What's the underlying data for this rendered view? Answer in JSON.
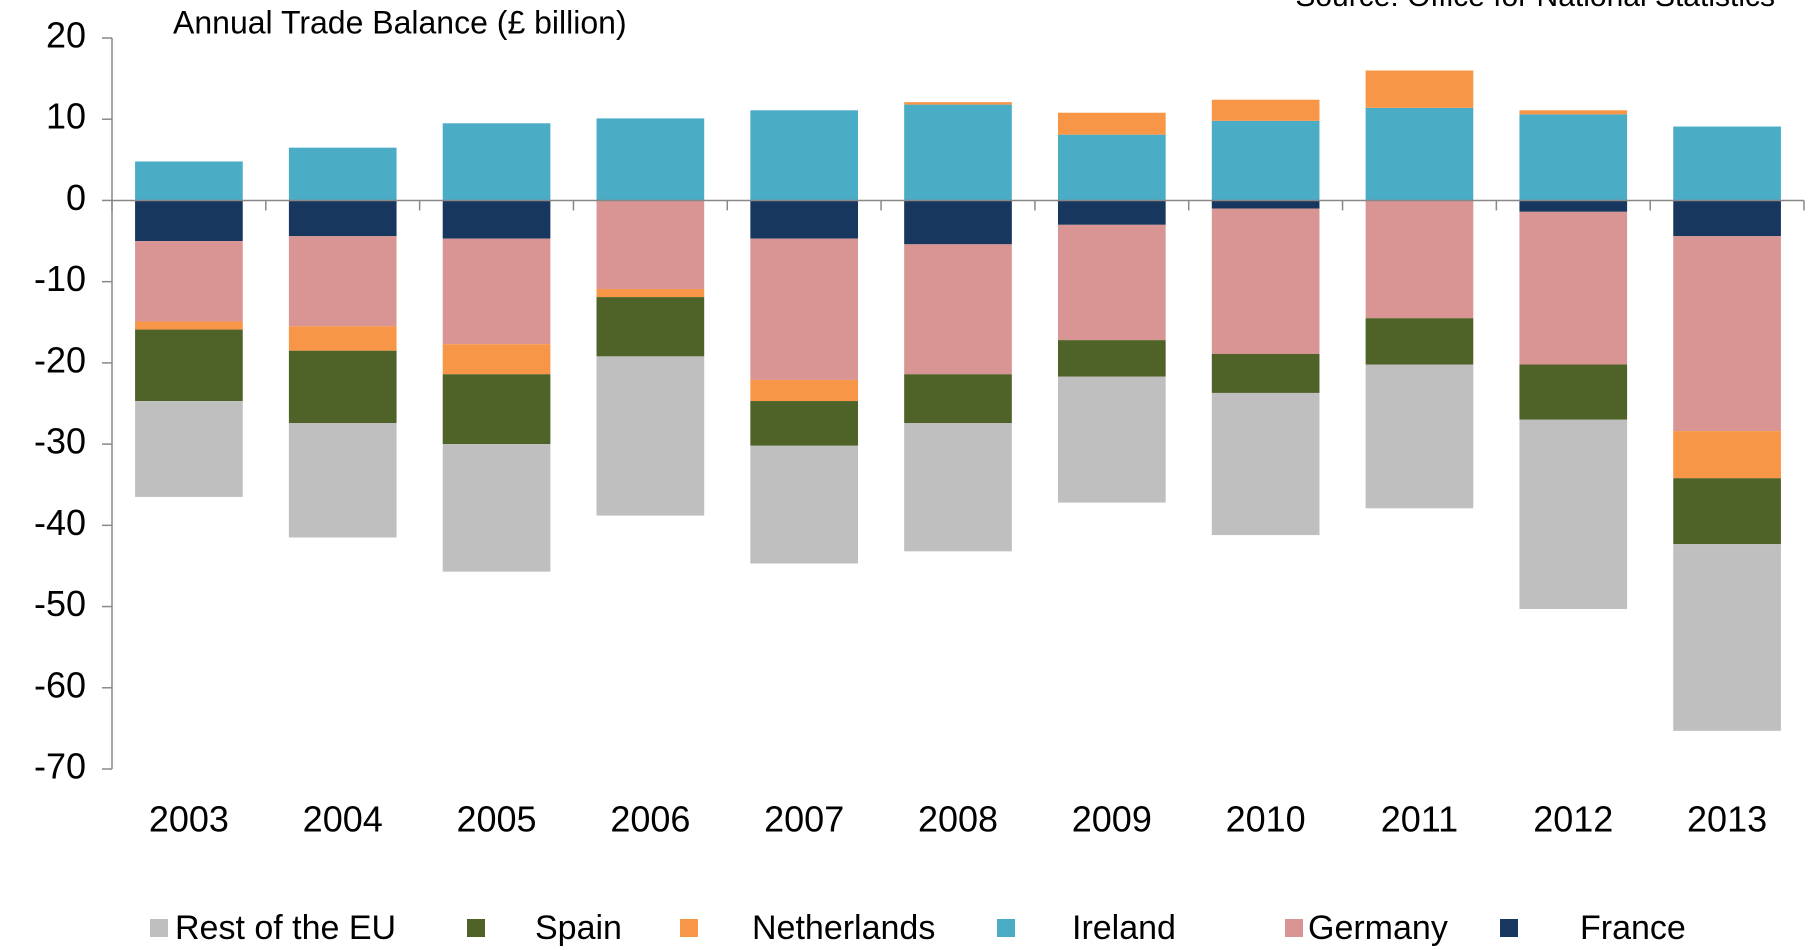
{
  "chart_data": {
    "type": "stacked_bar",
    "title": "Annual Trade Balance (£ billion)",
    "source": "Source: Office for National Statistics",
    "categories": [
      "2003",
      "2004",
      "2005",
      "2006",
      "2007",
      "2008",
      "2009",
      "2010",
      "2011",
      "2012",
      "2013"
    ],
    "series": [
      {
        "name": "Rest of the EU",
        "color": "#bfbfbf",
        "values": [
          -11.8,
          -14.1,
          -15.7,
          -19.6,
          -14.5,
          -15.8,
          -15.5,
          -17.5,
          -17.7,
          -23.3,
          -23.0
        ]
      },
      {
        "name": "Spain",
        "color": "#4f6228",
        "values": [
          -8.8,
          -8.9,
          -8.6,
          -7.3,
          -5.5,
          -6.0,
          -4.5,
          -4.8,
          -5.7,
          -6.8,
          -8.1
        ]
      },
      {
        "name": "Netherlands",
        "color": "#f79646",
        "values": [
          -1.0,
          -3.0,
          -3.7,
          -1.0,
          -2.6,
          0.3,
          2.7,
          2.6,
          4.6,
          0.5,
          -5.8
        ]
      },
      {
        "name": "Ireland",
        "color": "#4bacc6",
        "values": [
          4.8,
          6.5,
          9.5,
          10.1,
          11.1,
          11.8,
          8.1,
          9.8,
          11.4,
          10.6,
          9.1
        ]
      },
      {
        "name": "Germany",
        "color": "#d99594",
        "values": [
          -9.9,
          -11.1,
          -13.0,
          -10.9,
          -17.4,
          -16.0,
          -14.2,
          -17.9,
          -14.5,
          -18.8,
          -24.0
        ]
      },
      {
        "name": "France",
        "color": "#17375e",
        "values": [
          -5.0,
          -4.4,
          -4.7,
          0,
          -4.7,
          -5.4,
          -3.0,
          -1.0,
          0,
          -1.4,
          -4.4
        ]
      }
    ],
    "ylim": [
      -70,
      20
    ],
    "yticks": [
      -70,
      -60,
      -50,
      -40,
      -30,
      -20,
      -10,
      0,
      10,
      20
    ],
    "legend": "bottom"
  }
}
